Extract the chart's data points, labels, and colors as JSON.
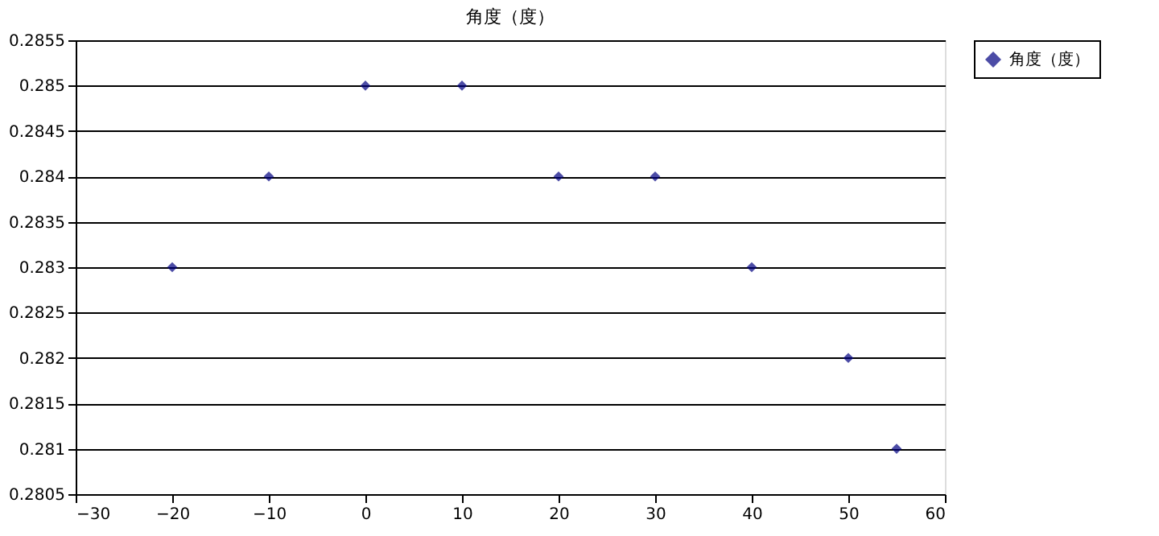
{
  "chart_data": {
    "type": "scatter",
    "title": "角度（度）",
    "x": [
      -20,
      -10,
      0,
      10,
      20,
      30,
      40,
      50,
      55
    ],
    "series": [
      {
        "name": "角度（度）",
        "color": "#000080",
        "values": [
          0.283,
          0.284,
          0.285,
          0.285,
          0.284,
          0.284,
          0.283,
          0.282,
          0.281
        ]
      }
    ],
    "xlim": [
      -30,
      60
    ],
    "xticks": [
      -30,
      -20,
      -10,
      0,
      10,
      20,
      30,
      40,
      50,
      60
    ],
    "ylim": [
      0.2805,
      0.2855
    ],
    "yticks": [
      0.2805,
      0.281,
      0.2815,
      0.282,
      0.2825,
      0.283,
      0.2835,
      0.284,
      0.2845,
      0.285,
      0.2855
    ],
    "grid": "y",
    "legend": "right",
    "marker": "diamond"
  }
}
